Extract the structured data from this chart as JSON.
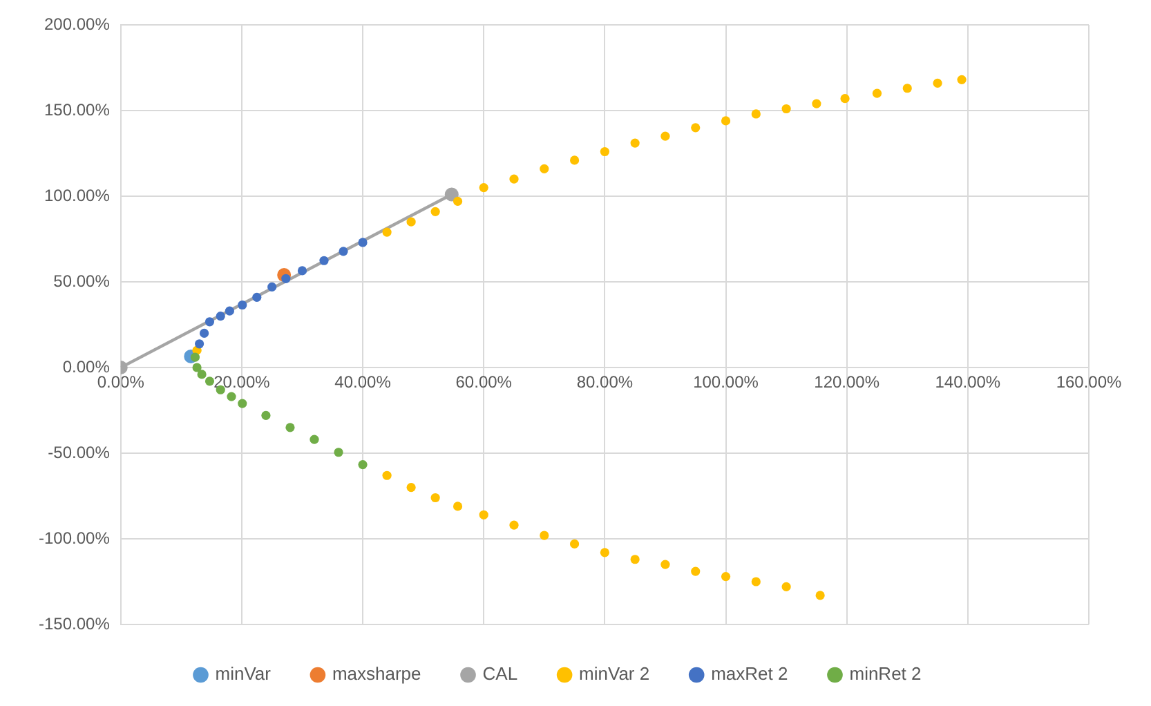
{
  "chart_data": {
    "type": "scatter",
    "legend": "bottom",
    "grid": true,
    "marker": "circle",
    "xlim": [
      0,
      160
    ],
    "ylim": [
      -150,
      200
    ],
    "xticks": [
      {
        "value": 0,
        "label": "0.00%"
      },
      {
        "value": 20,
        "label": "20.00%"
      },
      {
        "value": 40,
        "label": "40.00%"
      },
      {
        "value": 60,
        "label": "60.00%"
      },
      {
        "value": 80,
        "label": "80.00%"
      },
      {
        "value": 100,
        "label": "100.00%"
      },
      {
        "value": 120,
        "label": "120.00%"
      },
      {
        "value": 140,
        "label": "140.00%"
      },
      {
        "value": 160,
        "label": "160.00%"
      }
    ],
    "yticks": [
      {
        "value": -150,
        "label": "-150.00%"
      },
      {
        "value": -100,
        "label": "-100.00%"
      },
      {
        "value": -50,
        "label": "-50.00%"
      },
      {
        "value": 0,
        "label": "0.00%"
      },
      {
        "value": 50,
        "label": "50.00%"
      },
      {
        "value": 100,
        "label": "100.00%"
      },
      {
        "value": 150,
        "label": "150.00%"
      },
      {
        "value": 200,
        "label": "200.00%"
      }
    ],
    "series": [
      {
        "name": "minVar",
        "color": "#5b9bd5",
        "x": [
          11.6
        ],
        "values": [
          6.5
        ]
      },
      {
        "name": "maxsharpe",
        "color": "#ed7d31",
        "x": [
          27
        ],
        "values": [
          54
        ]
      },
      {
        "name": "CAL",
        "color": "#a5a5a5",
        "type": "line",
        "x": [
          0,
          54.7
        ],
        "values": [
          0,
          101
        ]
      },
      {
        "name": "minVar 2",
        "color": "#ffc000",
        "x": [
          115.6,
          110,
          105,
          100,
          95,
          90,
          85,
          80,
          75,
          70,
          65,
          60,
          55.7,
          52,
          48,
          44,
          12.6,
          44,
          48,
          52,
          55.7,
          60,
          65,
          70,
          75,
          80,
          85,
          90,
          95,
          100,
          105,
          110,
          115,
          119.7,
          125,
          130,
          135,
          139
        ],
        "values": [
          -133,
          -128,
          -125,
          -122,
          -119,
          -115,
          -112,
          -108,
          -103,
          -98,
          -92,
          -86,
          -81,
          -76,
          -70,
          -63,
          10,
          79,
          85,
          91,
          97,
          105,
          110,
          116,
          121,
          126,
          131,
          135,
          140,
          144,
          148,
          151,
          154,
          157,
          160,
          163,
          166,
          168
        ]
      },
      {
        "name": "maxRet 2",
        "color": "#4472c4",
        "x": [
          13,
          13.8,
          14.7,
          16.5,
          18,
          20.1,
          22.5,
          25,
          27.3,
          30,
          33.6,
          36.8,
          40
        ],
        "values": [
          13.8,
          20,
          26.7,
          30,
          33,
          36.5,
          41,
          47,
          51.9,
          56.5,
          62.4,
          67.8,
          73
        ]
      },
      {
        "name": "minRet 2",
        "color": "#70ad47",
        "x": [
          12.3,
          12.6,
          13.4,
          14.7,
          16.5,
          18.3,
          20.1,
          24,
          28,
          32,
          36,
          40
        ],
        "values": [
          6,
          0,
          -4,
          -8,
          -13,
          -17,
          -21,
          -28,
          -35,
          -42,
          -49.5,
          -56.7
        ]
      }
    ]
  }
}
